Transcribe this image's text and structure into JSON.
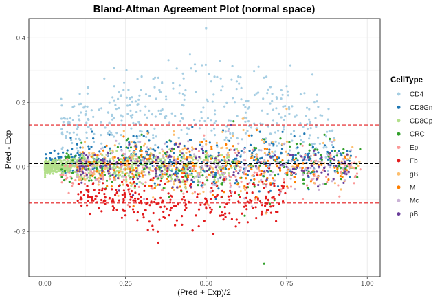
{
  "chart_data": {
    "type": "scatter",
    "title": "Bland-Altman Agreement Plot (normal space)",
    "xlabel": "(Pred + Exp)/2",
    "ylabel": "Pred - Exp",
    "xlim": [
      -0.05,
      1.04
    ],
    "ylim": [
      -0.34,
      0.46
    ],
    "x_ticks": [
      0.0,
      0.25,
      0.5,
      0.75,
      1.0
    ],
    "x_tick_labels": [
      "0.00",
      "0.25",
      "0.50",
      "0.75",
      "1.00"
    ],
    "y_ticks": [
      -0.2,
      0.0,
      0.2,
      0.4
    ],
    "y_tick_labels": [
      "-0.2",
      "0.0",
      "0.2",
      "0.4"
    ],
    "grid": true,
    "legend_position": "right",
    "legend_title": "CellType",
    "reference_lines": [
      {
        "y": 0.13,
        "color": "#e31a1c",
        "style": "dashed"
      },
      {
        "y": 0.01,
        "color": "#000000",
        "style": "dashed"
      },
      {
        "y": -0.112,
        "color": "#e31a1c",
        "style": "dashed"
      }
    ],
    "series": [
      {
        "name": "CD4",
        "color": "#a6cee3",
        "x_range": [
          0.05,
          0.9
        ],
        "y_center": 0.1,
        "y_spread": 0.14,
        "trend": 0.08,
        "values_note_free": [
          [
            0.1,
            0.1
          ],
          [
            0.2,
            0.2
          ],
          [
            0.3,
            0.28
          ],
          [
            0.45,
            0.35
          ],
          [
            0.6,
            0.28
          ],
          [
            0.75,
            0.25
          ],
          [
            0.88,
            0.18
          ],
          [
            0.5,
            0.43
          ]
        ]
      },
      {
        "name": "CD8Gn",
        "color": "#1f78b4",
        "x_range": [
          0.0,
          0.95
        ],
        "y_center": 0.02,
        "y_spread": 0.08,
        "trend": 0.0,
        "values_note_free": [
          [
            0.05,
            0.03
          ],
          [
            0.1,
            0.07
          ],
          [
            0.2,
            0.1
          ],
          [
            0.5,
            0.05
          ],
          [
            0.8,
            0.02
          ]
        ]
      },
      {
        "name": "CD8Gp",
        "color": "#b2df8a",
        "x_range": [
          0.0,
          0.6
        ],
        "y_center": 0.0,
        "y_spread": 0.05,
        "trend": 0.0,
        "values_note_free": [
          [
            0.05,
            0.0
          ],
          [
            0.1,
            0.02
          ],
          [
            0.2,
            -0.03
          ],
          [
            0.3,
            0.05
          ]
        ]
      },
      {
        "name": "CRC",
        "color": "#33a02c",
        "x_range": [
          0.05,
          0.98
        ],
        "y_center": 0.0,
        "y_spread": 0.1,
        "trend": 0.0,
        "values_note_free": [
          [
            0.3,
            0.1
          ],
          [
            0.6,
            -0.05
          ],
          [
            0.68,
            -0.3
          ],
          [
            0.9,
            0.05
          ]
        ]
      },
      {
        "name": "Ep",
        "color": "#fb9a99",
        "x_range": [
          0.05,
          0.98
        ],
        "y_center": -0.02,
        "y_spread": 0.09,
        "trend": 0.0,
        "values_note_free": [
          [
            0.2,
            -0.1
          ],
          [
            0.5,
            0.02
          ],
          [
            0.8,
            -0.1
          ]
        ]
      },
      {
        "name": "Fb",
        "color": "#e31a1c",
        "x_range": [
          0.1,
          0.75
        ],
        "y_center": -0.07,
        "y_spread": 0.08,
        "trend": -0.05,
        "values_note_free": [
          [
            0.15,
            -0.05
          ],
          [
            0.25,
            -0.15
          ],
          [
            0.35,
            -0.2
          ],
          [
            0.5,
            -0.1
          ]
        ]
      },
      {
        "name": "gB",
        "color": "#fdbf6f",
        "x_range": [
          0.1,
          0.98
        ],
        "y_center": 0.02,
        "y_spread": 0.1,
        "trend": 0.0,
        "values_note_free": [
          [
            0.4,
            0.1
          ],
          [
            0.6,
            0.05
          ],
          [
            0.75,
            0.18
          ],
          [
            0.9,
            -0.05
          ]
        ]
      },
      {
        "name": "M",
        "color": "#ff7f00",
        "x_range": [
          0.1,
          0.95
        ],
        "y_center": 0.0,
        "y_spread": 0.08,
        "trend": 0.0,
        "values_note_free": [
          [
            0.3,
            0.05
          ],
          [
            0.5,
            0.08
          ],
          [
            0.7,
            -0.05
          ]
        ]
      },
      {
        "name": "Mc",
        "color": "#cab2d6",
        "x_range": [
          0.1,
          0.95
        ],
        "y_center": 0.0,
        "y_spread": 0.08,
        "trend": 0.0,
        "values_note_free": [
          [
            0.3,
            -0.05
          ],
          [
            0.55,
            0.0
          ],
          [
            0.8,
            0.03
          ]
        ]
      },
      {
        "name": "pB",
        "color": "#6a3d9a",
        "x_range": [
          0.1,
          0.95
        ],
        "y_center": 0.0,
        "y_spread": 0.07,
        "trend": 0.0,
        "values_note_free": [
          [
            0.4,
            0.02
          ],
          [
            0.6,
            -0.02
          ],
          [
            0.85,
            0.0
          ]
        ]
      }
    ],
    "point_size": 1.6
  }
}
